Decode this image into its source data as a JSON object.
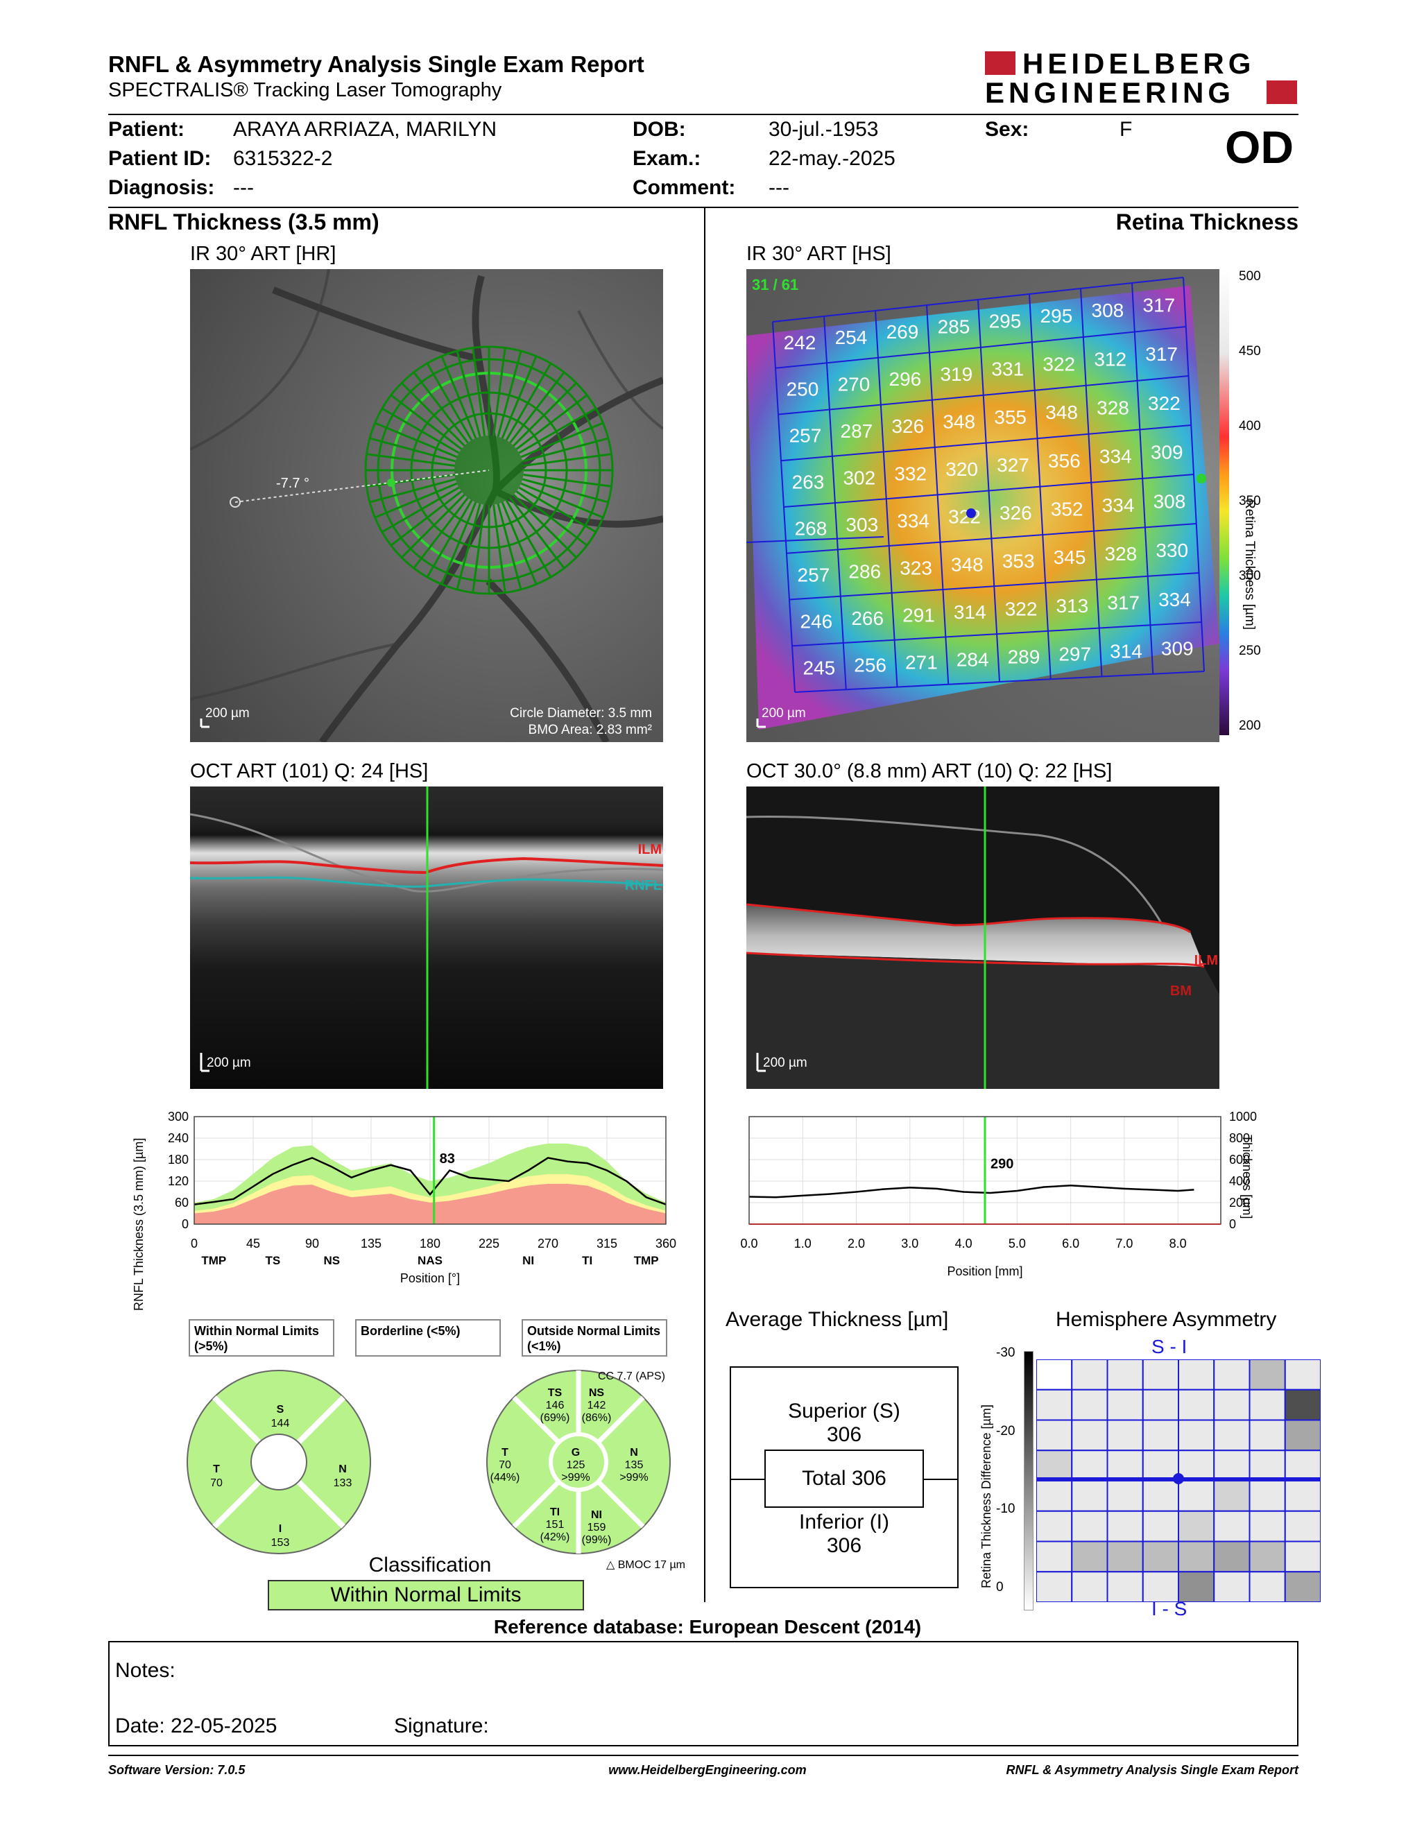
{
  "header": {
    "title": "RNFL & Asymmetry Analysis Single Exam Report",
    "subtitle": "SPECTRALIS® Tracking Laser Tomography",
    "brand_line1": "HEIDELBERG",
    "brand_line2": "ENGINEERING",
    "brand_color": "#c0202f"
  },
  "patient": {
    "patient_label": "Patient:",
    "patient_value": "ARAYA ARRIAZA, MARILYN",
    "id_label": "Patient ID:",
    "id_value": "6315322-2",
    "diag_label": "Diagnosis:",
    "diag_value": "---",
    "dob_label": "DOB:",
    "dob_value": "30-jul.-1953",
    "exam_label": "Exam.:",
    "exam_value": "22-may.-2025",
    "comment_label": "Comment:",
    "comment_value": "---",
    "sex_label": "Sex:",
    "sex_value": "F",
    "eye": "OD"
  },
  "left": {
    "section_title": "RNFL Thickness (3.5 mm)",
    "ir_title": "IR 30° ART [HR]",
    "ir_angle": "-7.7 °",
    "ir_scale": "200 µm",
    "ir_circle_diam": "Circle Diameter: 3.5 mm",
    "ir_bmo_area": "BMO Area: 2.83 mm²",
    "oct_title": "OCT ART (101) Q: 24 [HS]",
    "oct_ilm": "ILM",
    "oct_rnfl": "RNFL",
    "oct_scale": "200 µm"
  },
  "right": {
    "section_title": "Retina Thickness",
    "ir_title": "IR 30° ART [HS]",
    "ir_counter": "31 / 61",
    "ir_scale": "200 µm",
    "colorbar_label": "Retina Thickness [µm]",
    "colorbar_ticks": [
      "500",
      "450",
      "400",
      "350",
      "300",
      "250",
      "200"
    ],
    "grid_values": [
      [
        "242",
        "254",
        "269",
        "285",
        "295",
        "295",
        "308",
        "317"
      ],
      [
        "250",
        "270",
        "296",
        "319",
        "331",
        "322",
        "312",
        "317"
      ],
      [
        "257",
        "287",
        "326",
        "348",
        "355",
        "348",
        "328",
        "322"
      ],
      [
        "263",
        "302",
        "332",
        "320",
        "327",
        "356",
        "334",
        "309"
      ],
      [
        "268",
        "303",
        "334",
        "322",
        "326",
        "352",
        "334",
        "308"
      ],
      [
        "257",
        "286",
        "323",
        "348",
        "353",
        "345",
        "328",
        "330"
      ],
      [
        "246",
        "266",
        "291",
        "314",
        "322",
        "313",
        "317",
        "334"
      ],
      [
        "245",
        "256",
        "271",
        "284",
        "289",
        "297",
        "314",
        "309"
      ]
    ],
    "oct_title": "OCT 30.0° (8.8 mm) ART (10) Q: 22 [HS]",
    "oct_ilm": "ILM",
    "oct_bm": "BM",
    "oct_scale": "200 µm"
  },
  "chart_data": [
    {
      "type": "line",
      "ylabel": "RNFL Thickness (3.5 mm) [µm]",
      "xlabel": "Position [°]",
      "ylim": [
        0,
        300
      ],
      "yticks": [
        "300",
        "240",
        "180",
        "120",
        "60",
        "0"
      ],
      "xticks": [
        "0",
        "45",
        "90",
        "135",
        "180",
        "225",
        "270",
        "315",
        "360"
      ],
      "sectors": [
        "TMP",
        "TS",
        "NS",
        "NAS",
        "NI",
        "TI",
        "TMP"
      ],
      "cursor_value": "83",
      "cursor_x": 183,
      "x": [
        0,
        15,
        30,
        45,
        60,
        75,
        90,
        105,
        120,
        135,
        150,
        165,
        180,
        195,
        210,
        225,
        240,
        255,
        270,
        285,
        300,
        315,
        330,
        345,
        360
      ],
      "series": [
        {
          "values": [
            55,
            62,
            70,
            105,
            140,
            165,
            185,
            160,
            130,
            150,
            165,
            150,
            83,
            150,
            130,
            125,
            120,
            150,
            185,
            175,
            170,
            150,
            120,
            75,
            55
          ]
        }
      ],
      "normal_upper": [
        60,
        70,
        95,
        140,
        185,
        215,
        220,
        180,
        150,
        160,
        170,
        140,
        120,
        130,
        150,
        170,
        195,
        215,
        225,
        225,
        215,
        175,
        120,
        85,
        60
      ]
    },
    {
      "type": "line",
      "ylabel": "Thickness [µm]",
      "xlabel": "Position [mm]",
      "ylim": [
        0,
        1000
      ],
      "yticks": [
        "1000",
        "800",
        "600",
        "400",
        "200",
        "0"
      ],
      "xticks": [
        "0.0",
        "1.0",
        "2.0",
        "3.0",
        "4.0",
        "5.0",
        "6.0",
        "7.0",
        "8.0"
      ],
      "cursor_value": "290",
      "cursor_x": 4.4,
      "x": [
        0,
        0.5,
        1,
        1.5,
        2,
        2.5,
        3,
        3.5,
        4,
        4.5,
        5,
        5.5,
        6,
        6.5,
        7,
        7.5,
        8,
        8.3
      ],
      "series": [
        {
          "values": [
            255,
            250,
            265,
            280,
            300,
            325,
            340,
            330,
            300,
            290,
            310,
            345,
            360,
            345,
            330,
            320,
            310,
            320
          ]
        }
      ]
    }
  ],
  "legend": {
    "within": "Within Normal Limits (>5%)",
    "borderline": "Borderline (<5%)",
    "outside": "Outside Normal Limits (<1%)",
    "within_color": "#b8f28a",
    "borderline_color": "#fff59a",
    "outside_color": "#f79a8e"
  },
  "sectors_simple": {
    "S": "144",
    "T": "70",
    "N": "133",
    "I": "153"
  },
  "sectors_detail": {
    "cc": "CC 7.7 (APS)",
    "TS": {
      "label": "TS",
      "value": "146",
      "pct": "(69%)"
    },
    "NS": {
      "label": "NS",
      "value": "142",
      "pct": "(86%)"
    },
    "T": {
      "label": "T",
      "value": "70",
      "pct": "(44%)"
    },
    "G": {
      "label": "G",
      "value": "125",
      "pct": ">99%"
    },
    "N": {
      "label": "N",
      "value": "135",
      "pct": ">99%"
    },
    "TI": {
      "label": "TI",
      "value": "151",
      "pct": "(42%)"
    },
    "NI": {
      "label": "NI",
      "value": "159",
      "pct": "(99%)"
    },
    "bmoc": "BMOC 17 µm"
  },
  "classification": {
    "title": "Classification",
    "value": "Within Normal Limits"
  },
  "average": {
    "title": "Average Thickness [µm]",
    "superior_label": "Superior (S)",
    "superior_value": "306",
    "total": "Total 306",
    "inferior_label": "Inferior (I)",
    "inferior_value": "306"
  },
  "asymmetry": {
    "title": "Hemisphere Asymmetry",
    "top": "S - I",
    "bottom": "I - S",
    "axis_label": "Retina Thickness Difference [µm]",
    "ticks": [
      "-30",
      "-20",
      "-10",
      "0"
    ],
    "cells": [
      [
        0,
        1,
        1,
        1,
        1,
        1,
        3,
        1
      ],
      [
        1,
        1,
        1,
        1,
        1,
        1,
        1,
        8
      ],
      [
        1,
        1,
        1,
        1,
        1,
        1,
        1,
        4
      ],
      [
        2,
        1,
        1,
        1,
        1,
        1,
        1,
        1
      ],
      [
        1,
        1,
        1,
        1,
        1,
        2,
        1,
        1
      ],
      [
        1,
        1,
        1,
        1,
        2,
        1,
        1,
        1
      ],
      [
        1,
        3,
        3,
        3,
        3,
        4,
        3,
        1
      ],
      [
        1,
        1,
        1,
        1,
        5,
        1,
        1,
        4
      ]
    ]
  },
  "reference": "Reference database: European Descent (2014)",
  "notes": {
    "notes_label": "Notes:",
    "date_label": "Date: 22-05-2025",
    "signature_label": "Signature:"
  },
  "footer": {
    "software": "Software Version: 7.0.5",
    "website": "www.HeidelbergEngineering.com",
    "report": "RNFL & Asymmetry Analysis Single Exam Report"
  }
}
